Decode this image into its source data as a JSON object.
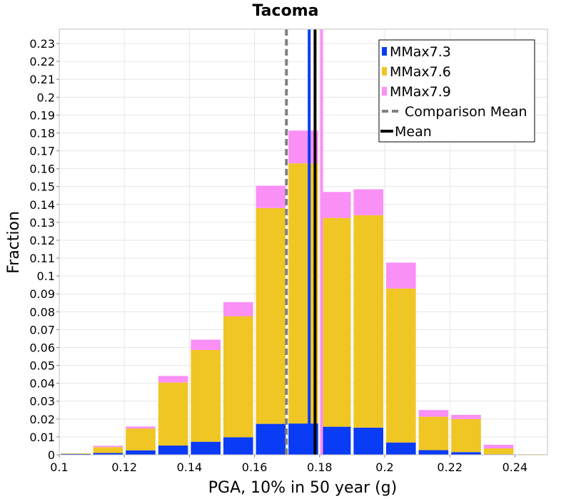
{
  "chart_data": {
    "type": "bar",
    "stacked": true,
    "title": "Tacoma",
    "xlabel": "PGA, 10% in 50 year (g)",
    "ylabel": "Fraction",
    "xlim": [
      0.1,
      0.25
    ],
    "ylim": [
      0,
      0.238
    ],
    "xticks": [
      "0.1",
      "0.12",
      "0.14",
      "0.16",
      "0.18",
      "0.2",
      "0.22",
      "0.24"
    ],
    "yticks": [
      "0",
      "0.01",
      "0.02",
      "0.03",
      "0.04",
      "0.05",
      "0.06",
      "0.07",
      "0.08",
      "0.09",
      "0.1",
      "0.11",
      "0.12",
      "0.13",
      "0.14",
      "0.15",
      "0.16",
      "0.17",
      "0.18",
      "0.19",
      "0.2",
      "0.21",
      "0.22",
      "0.23"
    ],
    "grid": true,
    "bin_width": 0.01,
    "x": [
      0.105,
      0.115,
      0.125,
      0.135,
      0.145,
      0.155,
      0.165,
      0.175,
      0.185,
      0.195,
      0.205,
      0.215,
      0.225,
      0.235,
      0.245
    ],
    "series": [
      {
        "name": "MMax7.3",
        "color": "#0a3bf5",
        "values": [
          0.0005,
          0.001,
          0.0025,
          0.0052,
          0.0073,
          0.0098,
          0.0173,
          0.0175,
          0.0157,
          0.0152,
          0.0069,
          0.0026,
          0.0015,
          0.0003,
          0.0001
        ]
      },
      {
        "name": "MMax7.6",
        "color": "#f0c624",
        "values": [
          0.0003,
          0.0033,
          0.0122,
          0.0352,
          0.0513,
          0.0677,
          0.1207,
          0.1455,
          0.1168,
          0.1188,
          0.0861,
          0.0187,
          0.0185,
          0.0033,
          0.0002
        ]
      },
      {
        "name": "MMax7.9",
        "color": "#fa8ff5",
        "values": [
          0.0,
          0.0007,
          0.0011,
          0.0037,
          0.0058,
          0.0079,
          0.0125,
          0.0183,
          0.0145,
          0.0145,
          0.0145,
          0.0037,
          0.0023,
          0.002,
          0.0
        ]
      }
    ],
    "vlines": [
      {
        "name": "MMax7.3 Mean",
        "x": 0.1768,
        "color": "#0a3bf5",
        "in_legend": false
      },
      {
        "name": "MMax7.9 Mean",
        "x": 0.1806,
        "color": "#fa8ff5",
        "in_legend": false
      },
      {
        "name": "Comparison Mean",
        "x": 0.1698,
        "color": "#808080",
        "dash": true,
        "in_legend": true
      },
      {
        "name": "Mean",
        "x": 0.1786,
        "color": "#000000",
        "in_legend": true
      }
    ],
    "legend": {
      "position": "top-right",
      "entries": [
        {
          "label": "MMax7.3",
          "color": "#0a3bf5",
          "kind": "box"
        },
        {
          "label": "MMax7.6",
          "color": "#f0c624",
          "kind": "box"
        },
        {
          "label": "MMax7.9",
          "color": "#fa8ff5",
          "kind": "box"
        },
        {
          "label": "Comparison Mean",
          "color": "#808080",
          "kind": "dash"
        },
        {
          "label": "Mean",
          "color": "#000000",
          "kind": "line"
        }
      ]
    }
  }
}
